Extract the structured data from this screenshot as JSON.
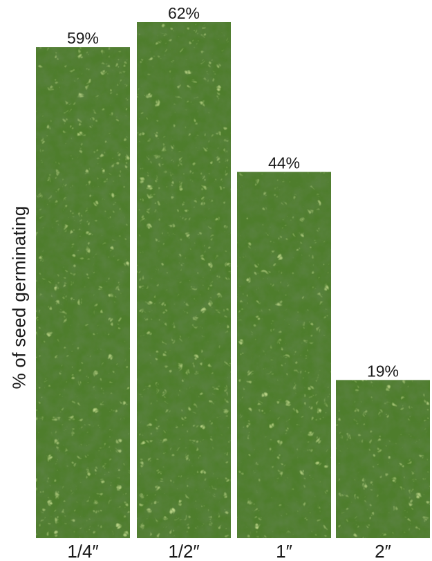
{
  "chart_data": {
    "type": "bar",
    "categories": [
      "1/4″",
      "1/2″",
      "1″",
      "2″"
    ],
    "values": [
      59,
      62,
      44,
      19
    ],
    "value_labels": [
      "59%",
      "62%",
      "44%",
      "19%"
    ],
    "title": "",
    "xlabel": "",
    "ylabel": "% of seed germinating",
    "ylim": [
      0,
      62
    ],
    "grid": false,
    "bar_fill": "alfalfa-foliage-photo",
    "colors": {
      "foliage_dark": "#1f3d14",
      "foliage_mid": "#4e7d2c",
      "foliage_light": "#9cc45a",
      "text": "#1a1a1a"
    }
  }
}
